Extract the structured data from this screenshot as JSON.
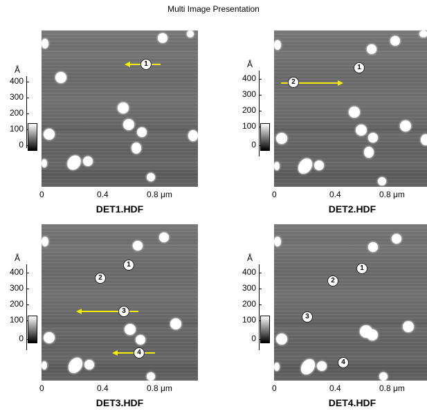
{
  "window": {
    "title": "Multi Image Presentation"
  },
  "axis": {
    "y_unit": "Å",
    "y_ticks": [
      "400",
      "300",
      "200",
      "100",
      "0"
    ],
    "x_ticks": [
      "0",
      "0.4",
      "0.8 μm"
    ]
  },
  "panels": [
    {
      "filename": "DET1.HDF",
      "markers": [
        "1"
      ]
    },
    {
      "filename": "DET2.HDF",
      "markers": [
        "1",
        "2"
      ]
    },
    {
      "filename": "DET3.HDF",
      "markers": [
        "1",
        "2",
        "3",
        "4"
      ]
    },
    {
      "filename": "DET4.HDF",
      "markers": [
        "1",
        "2",
        "3",
        "4"
      ]
    }
  ],
  "colors": {
    "arrow": "#f2f200",
    "background": "#ffffff"
  }
}
